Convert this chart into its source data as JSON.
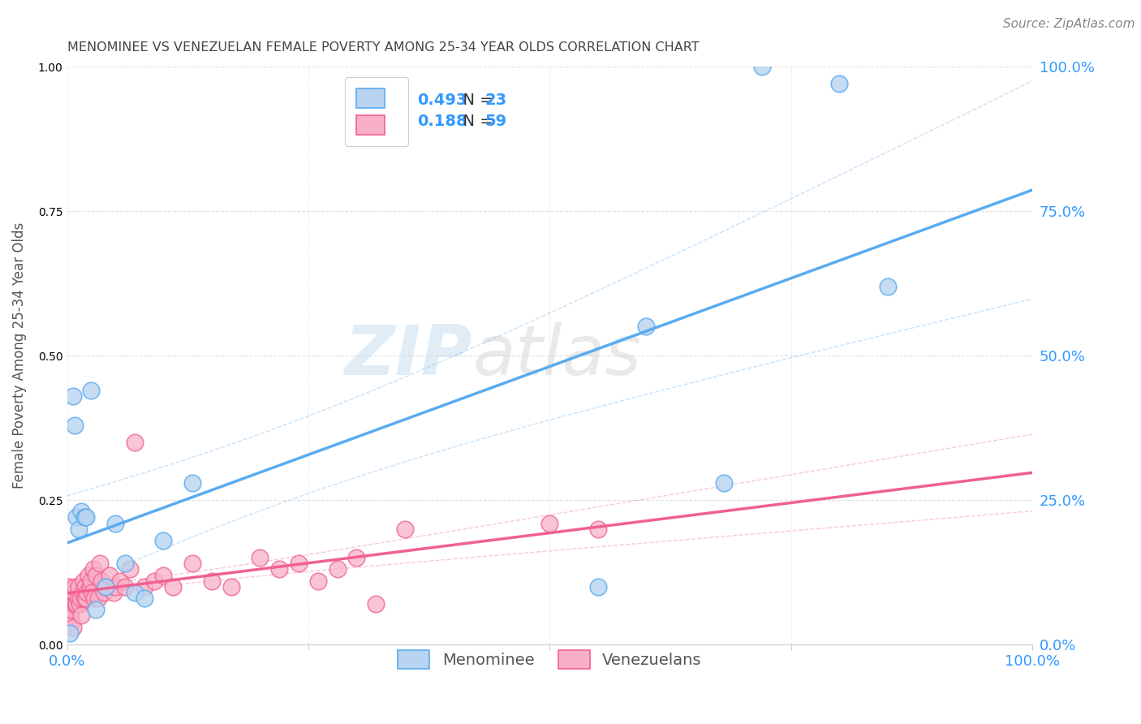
{
  "title": "MENOMINEE VS VENEZUELAN FEMALE POVERTY AMONG 25-34 YEAR OLDS CORRELATION CHART",
  "source": "Source: ZipAtlas.com",
  "ylabel": "Female Poverty Among 25-34 Year Olds",
  "xlim": [
    0,
    1
  ],
  "ylim": [
    0,
    1
  ],
  "ytick_positions": [
    0,
    0.25,
    0.5,
    0.75,
    1.0
  ],
  "ytick_labels": [
    "0.0%",
    "25.0%",
    "50.0%",
    "75.0%",
    "100.0%"
  ],
  "xtick_labels_left": "0.0%",
  "xtick_labels_right": "100.0%",
  "menominee_fill_color": "#b8d4f0",
  "menominee_edge_color": "#5aabf0",
  "venezuelan_fill_color": "#f8b0c8",
  "venezuelan_edge_color": "#f06090",
  "menominee_line_color": "#5aabf0",
  "venezuelan_line_color": "#f06090",
  "R_menominee": 0.493,
  "N_menominee": 23,
  "R_venezuelan": 0.188,
  "N_venezuelan": 59,
  "menominee_x": [
    0.003,
    0.006,
    0.008,
    0.01,
    0.012,
    0.015,
    0.018,
    0.02,
    0.025,
    0.03,
    0.04,
    0.05,
    0.06,
    0.07,
    0.08,
    0.1,
    0.13,
    0.55,
    0.6,
    0.68,
    0.72,
    0.8,
    0.85
  ],
  "menominee_y": [
    0.02,
    0.43,
    0.38,
    0.22,
    0.2,
    0.23,
    0.22,
    0.22,
    0.44,
    0.06,
    0.1,
    0.21,
    0.14,
    0.09,
    0.08,
    0.18,
    0.28,
    0.1,
    0.55,
    0.28,
    1.0,
    0.97,
    0.62
  ],
  "venezuelan_x": [
    0.002,
    0.003,
    0.003,
    0.004,
    0.005,
    0.005,
    0.006,
    0.007,
    0.007,
    0.008,
    0.009,
    0.01,
    0.011,
    0.012,
    0.013,
    0.014,
    0.015,
    0.016,
    0.017,
    0.018,
    0.019,
    0.02,
    0.021,
    0.022,
    0.024,
    0.025,
    0.026,
    0.027,
    0.028,
    0.03,
    0.032,
    0.034,
    0.036,
    0.038,
    0.04,
    0.044,
    0.048,
    0.05,
    0.055,
    0.06,
    0.065,
    0.07,
    0.08,
    0.09,
    0.1,
    0.11,
    0.13,
    0.15,
    0.17,
    0.2,
    0.22,
    0.24,
    0.26,
    0.28,
    0.3,
    0.32,
    0.35,
    0.5,
    0.55
  ],
  "venezuelan_y": [
    0.1,
    0.06,
    0.08,
    0.05,
    0.04,
    0.06,
    0.03,
    0.07,
    0.09,
    0.1,
    0.07,
    0.07,
    0.08,
    0.1,
    0.07,
    0.08,
    0.05,
    0.09,
    0.11,
    0.08,
    0.1,
    0.08,
    0.09,
    0.12,
    0.1,
    0.11,
    0.09,
    0.13,
    0.08,
    0.12,
    0.08,
    0.14,
    0.11,
    0.09,
    0.1,
    0.12,
    0.09,
    0.1,
    0.11,
    0.1,
    0.13,
    0.35,
    0.1,
    0.11,
    0.12,
    0.1,
    0.14,
    0.11,
    0.1,
    0.15,
    0.13,
    0.14,
    0.11,
    0.13,
    0.15,
    0.07,
    0.2,
    0.21,
    0.2
  ],
  "watermark_zip": "ZIP",
  "watermark_atlas": "atlas",
  "legend_label_menominee": "Menominee",
  "legend_label_venezuelan": "Venezuelans",
  "tick_color": "#3399ff",
  "label_color": "#555555",
  "grid_color": "#dddddd",
  "title_color": "#444444"
}
